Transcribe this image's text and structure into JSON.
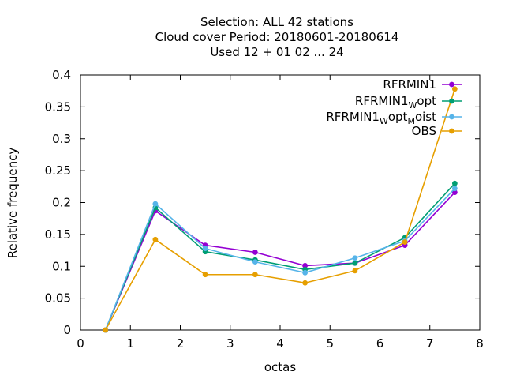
{
  "chart_data": {
    "type": "line",
    "title_lines": [
      "Selection: ALL      42 stations",
      "Cloud cover  Period: 20180601-20180614",
      "Used  12 + 01 02 ... 24"
    ],
    "xlabel": "octas",
    "ylabel": "Relative frequency",
    "xlim": [
      0,
      8
    ],
    "ylim": [
      0,
      0.4
    ],
    "xticks": [
      0,
      1,
      2,
      3,
      4,
      5,
      6,
      7,
      8
    ],
    "yticks": [
      0,
      0.05,
      0.1,
      0.15,
      0.2,
      0.25,
      0.3,
      0.35,
      0.4
    ],
    "ytick_labels": [
      "0",
      "0.05",
      "0.1",
      "0.15",
      "0.2",
      "0.25",
      "0.3",
      "0.35",
      "0.4"
    ],
    "grid": false,
    "legend_position": "top-right",
    "x": [
      0.5,
      1.5,
      2.5,
      3.5,
      4.5,
      5.5,
      6.5,
      7.5
    ],
    "series": [
      {
        "name": "RFRMIN1",
        "name_parts": [
          {
            "t": "RFRMIN1",
            "sub": false
          }
        ],
        "color": "#9400d3",
        "values": [
          0.0,
          0.187,
          0.133,
          0.122,
          0.101,
          0.105,
          0.133,
          0.216
        ]
      },
      {
        "name": "RFRMIN1_Wopt",
        "name_parts": [
          {
            "t": "RFRMIN1",
            "sub": false
          },
          {
            "t": "W",
            "sub": true
          },
          {
            "t": "opt",
            "sub": false
          }
        ],
        "color": "#009e73",
        "values": [
          0.0,
          0.192,
          0.123,
          0.11,
          0.095,
          0.105,
          0.145,
          0.23
        ]
      },
      {
        "name": "RFRMIN1_Wopt_Moist",
        "name_parts": [
          {
            "t": "RFRMIN1",
            "sub": false
          },
          {
            "t": "W",
            "sub": true
          },
          {
            "t": "opt",
            "sub": false
          },
          {
            "t": "M",
            "sub": true
          },
          {
            "t": "oist",
            "sub": false
          }
        ],
        "color": "#56b4e9",
        "values": [
          0.0,
          0.198,
          0.128,
          0.107,
          0.09,
          0.113,
          0.14,
          0.222
        ]
      },
      {
        "name": "OBS",
        "name_parts": [
          {
            "t": "OBS",
            "sub": false
          }
        ],
        "color": "#e69f00",
        "values": [
          0.0,
          0.142,
          0.087,
          0.087,
          0.074,
          0.093,
          0.138,
          0.378
        ]
      }
    ]
  }
}
